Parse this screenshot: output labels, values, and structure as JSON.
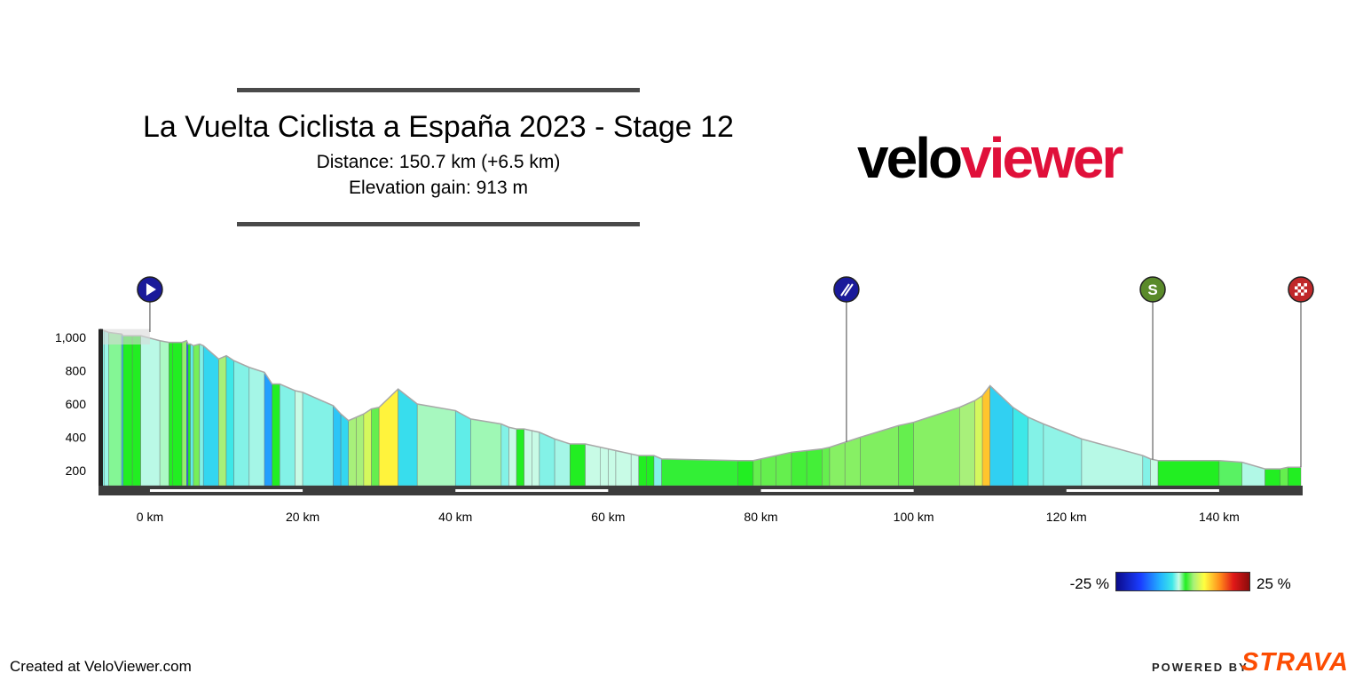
{
  "header": {
    "title": "La Vuelta Ciclista a España 2023 - Stage 12",
    "distance": "Distance: 150.7 km (+6.5 km)",
    "elevation_gain": "Elevation gain: 913 m"
  },
  "logo": {
    "part1": "velo",
    "part2": "viewer"
  },
  "footer": {
    "created": "Created at VeloViewer.com",
    "powered": "POWERED BY",
    "strava": "STRAVA"
  },
  "legend": {
    "min": "-25 %",
    "max": "25 %"
  },
  "colors": {
    "track": "#3c3c3c",
    "profile_stroke": "#a8a8a8",
    "start_marker": "#1a1a9a",
    "feed_marker": "#1a1a9a",
    "sprint_marker": "#5a8a2a",
    "finish_marker": "#c0282a"
  },
  "chart_data": {
    "type": "area",
    "title": "",
    "xlabel": "",
    "ylabel": "",
    "xlim": [
      -6.5,
      150.7
    ],
    "ylim": [
      100,
      1050
    ],
    "x_ticks": [
      0,
      20,
      40,
      60,
      80,
      100,
      120,
      140
    ],
    "x_tick_labels": [
      "0 km",
      "20 km",
      "40 km",
      "60 km",
      "80 km",
      "100 km",
      "120 km",
      "140 km"
    ],
    "y_ticks": [
      200,
      400,
      600,
      800,
      1000
    ],
    "y_tick_labels": [
      "200",
      "400",
      "600",
      "800",
      "1,000"
    ],
    "profile": {
      "x": [
        -6.5,
        -6.0,
        -5.4,
        -3.7,
        -3.5,
        -2.3,
        -1.2,
        1.3,
        2.5,
        3.0,
        4.2,
        4.8,
        5.0,
        5.3,
        5.7,
        6.5,
        7.0,
        9.0,
        10.0,
        11.0,
        13.0,
        15.0,
        16.0,
        17.0,
        19.0,
        20.0,
        24.0,
        25.0,
        26.0,
        27.0,
        28.0,
        29.0,
        30.0,
        32.5,
        35.0,
        40.0,
        42.0,
        46.0,
        47.0,
        48.0,
        49.0,
        50.0,
        51.0,
        53.0,
        55.0,
        57.0,
        59.0,
        60.0,
        61.0,
        63.0,
        64.0,
        65.0,
        66.0,
        67.0,
        77.0,
        79.0,
        80.0,
        82.0,
        84.0,
        86.0,
        88.0,
        89.0,
        91.0,
        93.0,
        98.0,
        100.0,
        106.0,
        108.0,
        109.0,
        110.0,
        113.0,
        115.0,
        117.0,
        122.0,
        130.0,
        131.0,
        132.0,
        140.0,
        143.0,
        146.0,
        148.0,
        149.0,
        150.7
      ],
      "y": [
        1050,
        1040,
        1030,
        1020,
        1010,
        1010,
        1010,
        980,
        970,
        970,
        970,
        980,
        960,
        960,
        950,
        960,
        950,
        870,
        890,
        860,
        820,
        790,
        720,
        720,
        680,
        670,
        590,
        540,
        500,
        520,
        540,
        570,
        580,
        690,
        600,
        560,
        510,
        480,
        460,
        450,
        450,
        440,
        430,
        390,
        360,
        360,
        340,
        330,
        320,
        300,
        290,
        290,
        290,
        270,
        260,
        260,
        270,
        290,
        310,
        320,
        330,
        340,
        370,
        400,
        470,
        490,
        580,
        620,
        650,
        710,
        580,
        520,
        480,
        390,
        290,
        270,
        260,
        260,
        250,
        210,
        210,
        220,
        220
      ]
    },
    "markers": [
      {
        "type": "start",
        "x": 0
      },
      {
        "type": "feed-zone",
        "x": 91.2
      },
      {
        "type": "sprint",
        "x": 131.3
      },
      {
        "type": "finish",
        "x": 150.7
      }
    ]
  }
}
